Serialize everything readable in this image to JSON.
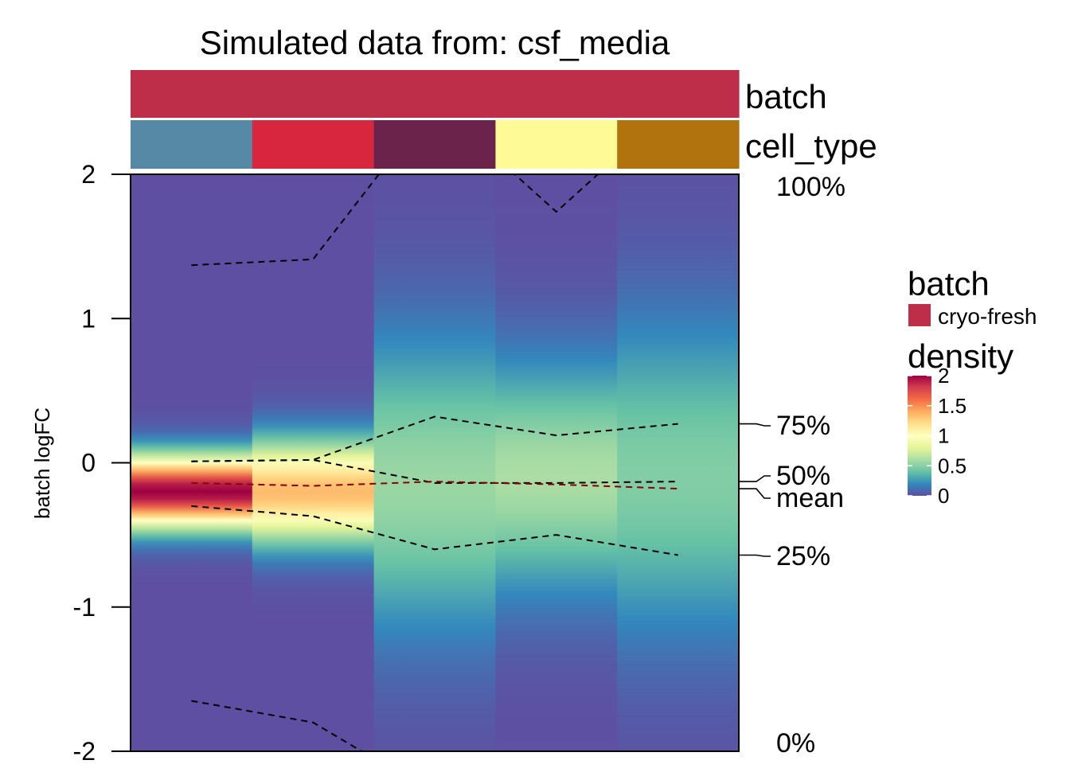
{
  "chart_data": {
    "type": "heatmap",
    "title": "Simulated data from: csf_media",
    "xlabel": "",
    "ylabel": "batch logFC",
    "ylim": [
      -2,
      2
    ],
    "yticks": [
      "2",
      "1",
      "0",
      "-1",
      "-2"
    ],
    "yticks_values": [
      2,
      1,
      0,
      -1,
      -2
    ],
    "annotations": {
      "batch": {
        "label": "batch",
        "values": [
          "cryo-fresh",
          "cryo-fresh",
          "cryo-fresh",
          "cryo-fresh",
          "cryo-fresh"
        ]
      },
      "cell_type": {
        "label": "cell_type",
        "colors": [
          "#5589A5",
          "#D9263F",
          "#6B224B",
          "#FEFB96",
          "#B0730E"
        ]
      }
    },
    "columns": [
      {
        "density_peak": 2.0,
        "density_center": -0.2,
        "density_sd": 0.17,
        "quantile_0": -1.65,
        "quantile_25": -0.3,
        "quantile_50": 0.01,
        "mean": -0.14,
        "quantile_75": 0.01,
        "quantile_100": 1.37
      },
      {
        "density_peak": 1.35,
        "density_center": -0.2,
        "density_sd": 0.24,
        "quantile_0": -1.8,
        "quantile_25": -0.37,
        "quantile_50": 0.02,
        "mean": -0.16,
        "quantile_75": 0.02,
        "quantile_100": 1.41
      },
      {
        "density_peak": 0.55,
        "density_center": -0.15,
        "density_sd": 0.7,
        "quantile_0": -2.3,
        "quantile_25": -0.6,
        "quantile_50": -0.14,
        "mean": -0.13,
        "quantile_75": 0.32,
        "quantile_100": 2.5
      },
      {
        "density_peak": 0.6,
        "density_center": -0.1,
        "density_sd": 0.55,
        "quantile_0": -2.3,
        "quantile_25": -0.5,
        "quantile_50": -0.14,
        "mean": -0.15,
        "quantile_75": 0.19,
        "quantile_100": 1.74
      },
      {
        "density_peak": 0.48,
        "density_center": -0.1,
        "density_sd": 0.75,
        "quantile_0": -2.3,
        "quantile_25": -0.64,
        "quantile_50": -0.13,
        "mean": -0.18,
        "quantile_75": 0.27,
        "quantile_100": 2.5
      }
    ],
    "line_labels": [
      "100%",
      "75%",
      "50%",
      "mean",
      "25%",
      "0%"
    ],
    "line_colors": {
      "quantile": "#000000",
      "mean": "#8B0000"
    },
    "legend": {
      "placement": "right",
      "batch_title": "batch",
      "batch_entries": [
        {
          "label": "cryo-fresh",
          "color": "#BE2E48"
        }
      ],
      "density_title": "density",
      "density_ticks": [
        "2",
        "1.5",
        "1",
        "0.5",
        "0"
      ],
      "density_tick_values": [
        2,
        1.5,
        1,
        0.5,
        0
      ],
      "colormap": [
        "#5E4FA2",
        "#3288BD",
        "#66C2A5",
        "#ABDDA4",
        "#E6F598",
        "#FFFFBF",
        "#FEE08B",
        "#FDAE61",
        "#F46D43",
        "#D53E4F",
        "#9E0142"
      ]
    }
  }
}
